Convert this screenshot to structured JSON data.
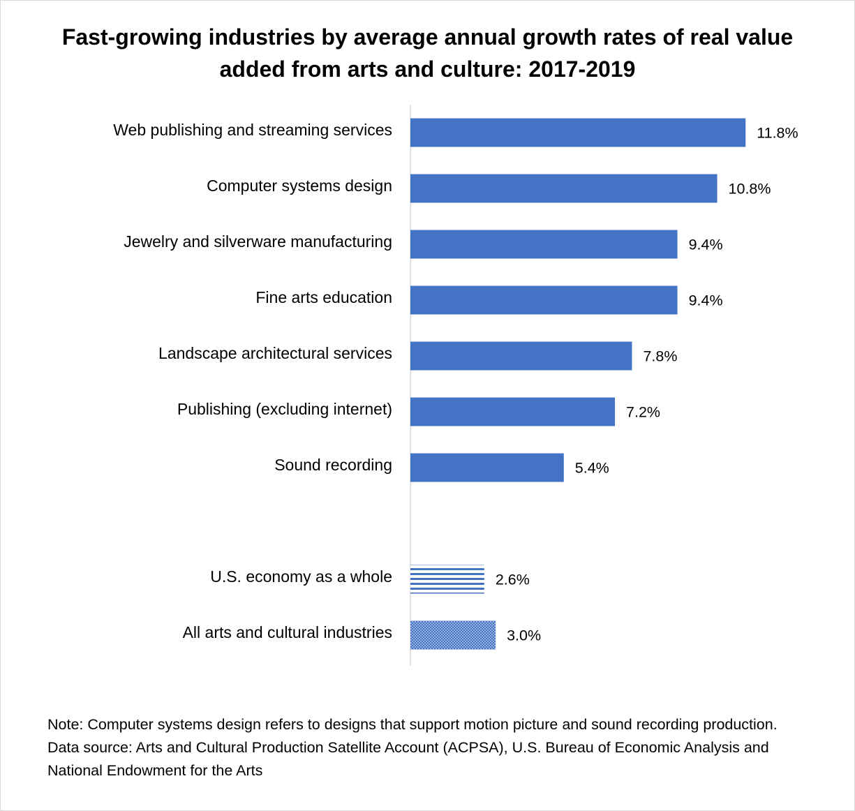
{
  "title": "Fast-growing industries by average annual growth rates of real value added from arts and culture: 2017-2019",
  "note_lines": [
    "Note: Computer systems design refers to designs that support motion picture and sound recording production.",
    "Data source: Arts and Cultural Production Satellite Account (ACPSA), U.S. Bureau of Economic Analysis and National Endowment for the Arts"
  ],
  "chart_data": {
    "type": "bar",
    "orientation": "horizontal",
    "categories": [
      "Web publishing and streaming services",
      "Computer systems design",
      "Jewelry and silverware manufacturing",
      "Fine arts education",
      "Landscape architectural services",
      "Publishing (excluding internet)",
      "Sound recording",
      "U.S. economy as a whole",
      "All arts and cultural industries"
    ],
    "values": [
      11.8,
      10.8,
      9.4,
      9.4,
      7.8,
      7.2,
      5.4,
      2.6,
      3.0
    ],
    "data_labels": [
      "11.8%",
      "10.8%",
      "9.4%",
      "9.4%",
      "7.8%",
      "7.2%",
      "5.4%",
      "2.6%",
      "3.0%"
    ],
    "fills": [
      "solid",
      "solid",
      "solid",
      "solid",
      "solid",
      "solid",
      "solid",
      "horizontal-stripes",
      "dotted"
    ],
    "bar_color": "#4472c4",
    "axis_color": "#d9d9d9",
    "xlim": [
      0,
      12
    ],
    "grid": false,
    "legend": "none"
  }
}
